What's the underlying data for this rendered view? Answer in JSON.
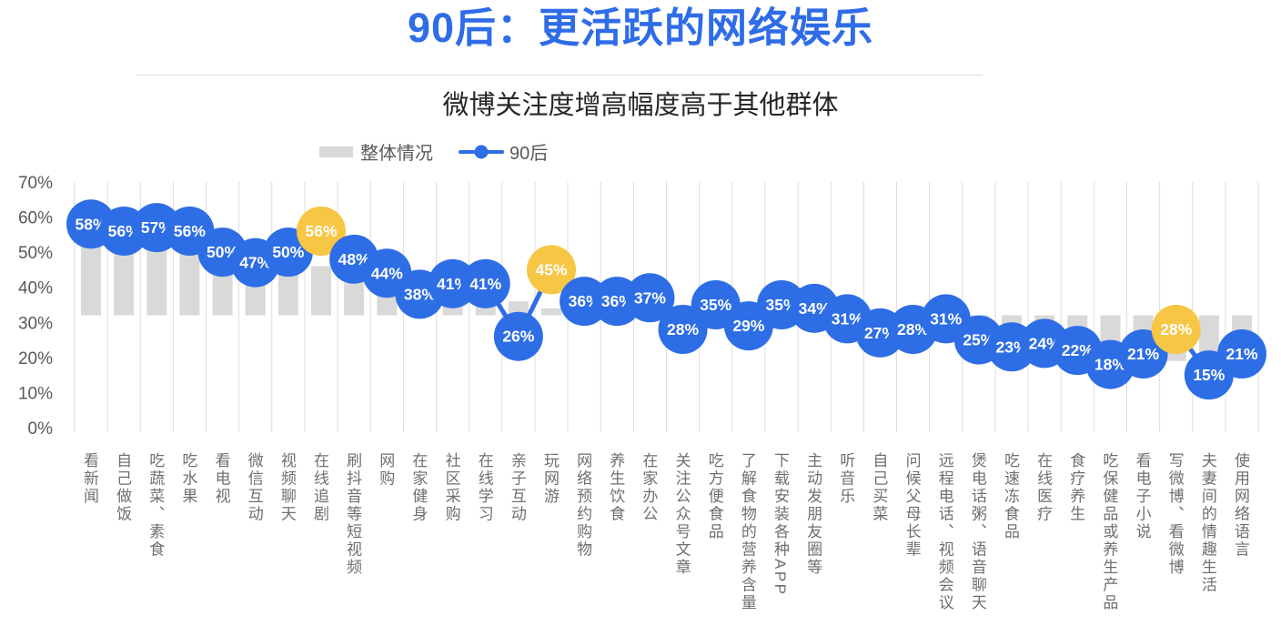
{
  "header": {
    "title": "90后：更活跃的网络娱乐",
    "subtitle": "微博关注度增高幅度高于其他群体"
  },
  "legend": {
    "overall_label": "整体情况",
    "post90s_label": "90后"
  },
  "colors": {
    "accent_blue": "#2d6de6",
    "highlight_yellow": "#f7c644",
    "bar_gray": "#d9d9d9",
    "gridline_gray": "#dddddd",
    "axis_text_gray": "#595959",
    "category_text_gray": "#6f6f6f",
    "point_label_white": "#ffffff",
    "title_blue": "#2e6ce8",
    "subtitle_dark": "#262626"
  },
  "chart_data": {
    "type": "bar",
    "subtype": "bar+line combo, line shown as labeled circle markers",
    "title": "90后：更活跃的网络娱乐",
    "subtitle": "微博关注度增高幅度高于其他群体",
    "xlabel": "",
    "ylabel": "",
    "ylim": [
      0,
      70
    ],
    "ytick_step": 10,
    "ytick_labels": [
      "0%",
      "10%",
      "20%",
      "30%",
      "40%",
      "50%",
      "60%",
      "70%"
    ],
    "grid": "vertical-only",
    "legend_position": "top-center-left",
    "bar_axis_crossing": 32,
    "categories": [
      "看新闻",
      "自己做饭",
      "吃蔬菜、素食",
      "吃水果",
      "看电视",
      "微信互动",
      "视频聊天",
      "在线追剧",
      "刷抖音等短视频",
      "网购",
      "在家健身",
      "社区采购",
      "在线学习",
      "亲子互动",
      "玩网游",
      "网络预约购物",
      "养生饮食",
      "在家办公",
      "关注公众号文章",
      "吃方便食品",
      "了解食物的营养含量",
      "下载安装各种APP",
      "主动发朋友圈等",
      "听音乐",
      "自己买菜",
      "问候父母长辈",
      "远程电话、视频会议",
      "煲电话粥、语音聊天",
      "吃速冻食品",
      "在线医疗",
      "食疗养生",
      "吃保健品或养生产品",
      "看电子小说",
      "写微博、看微博",
      "夫妻间的情趣生活",
      "使用网络语言"
    ],
    "series": [
      {
        "name": "整体情况",
        "type": "bar",
        "color_key": "bar_gray",
        "values_estimated_from_pixels": true,
        "values": [
          55,
          53,
          54,
          53,
          48,
          44,
          45,
          46,
          42,
          40,
          35,
          36,
          36,
          36,
          34,
          33,
          34,
          34,
          30,
          33,
          31,
          33,
          32,
          30,
          29,
          30,
          30,
          26,
          25,
          26,
          24,
          21,
          23,
          19,
          20,
          25
        ]
      },
      {
        "name": "90后",
        "type": "line",
        "color_key": "accent_blue",
        "point_label_format": "{v}%",
        "highlighted_indices": [
          7,
          14,
          33
        ],
        "highlight_color_key": "highlight_yellow",
        "values": [
          58,
          56,
          57,
          56,
          50,
          47,
          50,
          56,
          48,
          44,
          38,
          41,
          41,
          26,
          45,
          36,
          36,
          37,
          28,
          35,
          29,
          35,
          34,
          31,
          27,
          28,
          31,
          25,
          23,
          24,
          22,
          18,
          21,
          28,
          15,
          21
        ]
      }
    ]
  }
}
